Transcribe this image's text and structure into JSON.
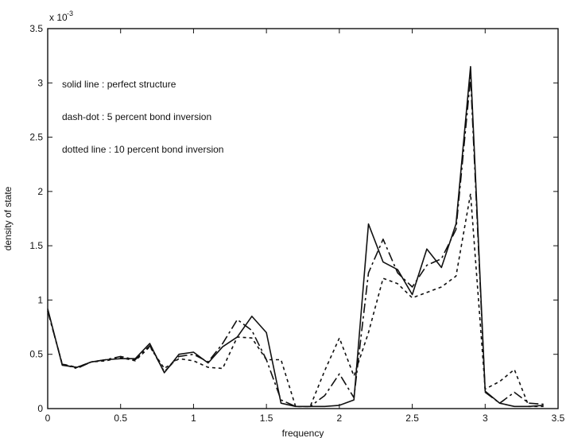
{
  "chart_data": {
    "type": "line",
    "title": "",
    "xlabel": "frequency",
    "ylabel": "density of state",
    "y_exponent_label": "x 10",
    "y_exponent_power": "-3",
    "xlim": [
      0,
      3.5
    ],
    "ylim": [
      0,
      3.5
    ],
    "grid": false,
    "x_ticks": [
      "0",
      "0.5",
      "1",
      "1.5",
      "2",
      "2.5",
      "3",
      "3.5"
    ],
    "y_ticks": [
      "0",
      "0.5",
      "1",
      "1.5",
      "2",
      "2.5",
      "3",
      "3.5"
    ],
    "x": [
      0,
      0.1,
      0.2,
      0.3,
      0.4,
      0.5,
      0.6,
      0.7,
      0.8,
      0.9,
      1.0,
      1.1,
      1.2,
      1.3,
      1.4,
      1.5,
      1.6,
      1.7,
      1.8,
      1.9,
      2.0,
      2.1,
      2.2,
      2.3,
      2.4,
      2.5,
      2.6,
      2.7,
      2.8,
      2.9,
      3.0,
      3.1,
      3.2,
      3.3,
      3.4
    ],
    "series": [
      {
        "style": "solid",
        "values": [
          0.92,
          0.4,
          0.38,
          0.43,
          0.45,
          0.46,
          0.46,
          0.6,
          0.33,
          0.5,
          0.52,
          0.42,
          0.57,
          0.66,
          0.85,
          0.7,
          0.05,
          0.02,
          0.02,
          0.02,
          0.03,
          0.08,
          1.7,
          1.35,
          1.28,
          1.05,
          1.47,
          1.3,
          1.7,
          3.15,
          0.16,
          0.05,
          0.02,
          0.02,
          0.03
        ]
      },
      {
        "style": "dashdot",
        "values": [
          0.9,
          0.41,
          0.37,
          0.43,
          0.45,
          0.48,
          0.45,
          0.58,
          0.34,
          0.48,
          0.5,
          0.43,
          0.6,
          0.82,
          0.72,
          0.45,
          0.08,
          0.02,
          0.02,
          0.12,
          0.32,
          0.1,
          1.25,
          1.56,
          1.25,
          1.12,
          1.32,
          1.38,
          1.65,
          3.05,
          0.15,
          0.05,
          0.15,
          0.05,
          0.04
        ]
      },
      {
        "style": "dotted",
        "values": [
          0.9,
          0.41,
          0.38,
          0.43,
          0.44,
          0.47,
          0.44,
          0.57,
          0.37,
          0.46,
          0.44,
          0.38,
          0.37,
          0.66,
          0.65,
          0.45,
          0.45,
          0.02,
          0.02,
          0.35,
          0.65,
          0.3,
          0.7,
          1.2,
          1.15,
          1.02,
          1.07,
          1.12,
          1.22,
          1.98,
          0.18,
          0.25,
          0.36,
          0.02,
          0.02
        ]
      }
    ],
    "annotations": [
      "solid line : perfect structure",
      "dash-dot :  5 percent bond inversion",
      "dotted line : 10 percent bond inversion"
    ]
  }
}
